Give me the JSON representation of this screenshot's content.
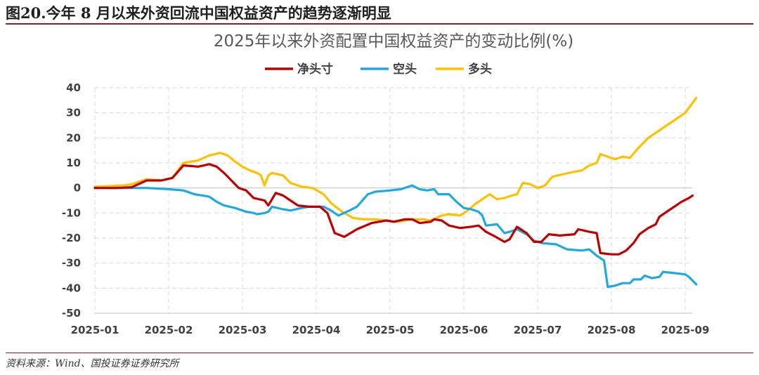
{
  "figure": {
    "title": "图20.今年 8 月以来外资回流中国权益资产的趋势逐渐明显",
    "source": "资料来源：Wind、国投证券证券研究所"
  },
  "chart_data": {
    "type": "line",
    "title": "2025年以来外资配置中国权益资产的变动比例(%)",
    "xlabel": "",
    "ylabel": "",
    "x_ticks": [
      "2025-01",
      "2025-02",
      "2025-03",
      "2025-04",
      "2025-05",
      "2025-06",
      "2025-07",
      "2025-08",
      "2025-09"
    ],
    "y_ticks": [
      40,
      30,
      20,
      10,
      0,
      -10,
      -20,
      -30,
      -40,
      -50
    ],
    "ylim": [
      -50,
      40
    ],
    "xlim_months": [
      0,
      8
    ],
    "grid": "dashed",
    "legend_position": "top",
    "colors": {
      "net": "#c00000",
      "short": "#1fa9e1",
      "long": "#ffc000",
      "grid": "#d9d9d9",
      "axis": "#bfbfbf"
    },
    "series": [
      {
        "name": "净头寸",
        "key": "net",
        "points": [
          [
            0,
            0
          ],
          [
            0.3,
            0
          ],
          [
            0.5,
            0.3
          ],
          [
            0.7,
            3
          ],
          [
            0.9,
            3
          ],
          [
            1.05,
            4
          ],
          [
            1.2,
            9
          ],
          [
            1.4,
            8.5
          ],
          [
            1.55,
            9.5
          ],
          [
            1.65,
            8.5
          ],
          [
            1.75,
            6
          ],
          [
            1.85,
            3
          ],
          [
            1.95,
            0
          ],
          [
            2.05,
            -1
          ],
          [
            2.15,
            -4
          ],
          [
            2.3,
            -5
          ],
          [
            2.35,
            -7
          ],
          [
            2.45,
            -2
          ],
          [
            2.55,
            -3
          ],
          [
            2.65,
            -5
          ],
          [
            2.75,
            -7
          ],
          [
            2.9,
            -7.5
          ],
          [
            3.05,
            -7.5
          ],
          [
            3.15,
            -10
          ],
          [
            3.25,
            -18
          ],
          [
            3.38,
            -19.5
          ],
          [
            3.55,
            -16.5
          ],
          [
            3.75,
            -14
          ],
          [
            3.95,
            -13
          ],
          [
            4.05,
            -13.5
          ],
          [
            4.2,
            -12.5
          ],
          [
            4.3,
            -12.5
          ],
          [
            4.4,
            -14
          ],
          [
            4.55,
            -13.5
          ],
          [
            4.6,
            -12.5
          ],
          [
            4.7,
            -13
          ],
          [
            4.8,
            -15
          ],
          [
            4.95,
            -16
          ],
          [
            5.1,
            -15.5
          ],
          [
            5.2,
            -15
          ],
          [
            5.3,
            -17.5
          ],
          [
            5.4,
            -19
          ],
          [
            5.55,
            -21.5
          ],
          [
            5.62,
            -20.5
          ],
          [
            5.72,
            -15.5
          ],
          [
            5.85,
            -18
          ],
          [
            5.95,
            -21.5
          ],
          [
            6.05,
            -21.5
          ],
          [
            6.15,
            -18.5
          ],
          [
            6.3,
            -19
          ],
          [
            6.5,
            -18.5
          ],
          [
            6.55,
            -16.5
          ],
          [
            6.7,
            -17.5
          ],
          [
            6.8,
            -18
          ],
          [
            6.85,
            -26
          ],
          [
            7.0,
            -26.5
          ],
          [
            7.1,
            -26.5
          ],
          [
            7.2,
            -25
          ],
          [
            7.3,
            -22
          ],
          [
            7.38,
            -18.5
          ],
          [
            7.5,
            -16
          ],
          [
            7.6,
            -14.5
          ],
          [
            7.65,
            -11.5
          ],
          [
            7.75,
            -9.5
          ],
          [
            7.85,
            -7.5
          ],
          [
            7.95,
            -5.5
          ],
          [
            8.05,
            -4
          ],
          [
            8.1,
            -3
          ]
        ]
      },
      {
        "name": "空头",
        "key": "short",
        "points": [
          [
            0,
            0
          ],
          [
            0.4,
            0
          ],
          [
            0.7,
            0
          ],
          [
            1.0,
            -0.5
          ],
          [
            1.2,
            -1
          ],
          [
            1.35,
            -2.5
          ],
          [
            1.55,
            -3.5
          ],
          [
            1.65,
            -5.5
          ],
          [
            1.75,
            -7
          ],
          [
            1.9,
            -8
          ],
          [
            2.05,
            -9.5
          ],
          [
            2.15,
            -10
          ],
          [
            2.2,
            -10.5
          ],
          [
            2.3,
            -10
          ],
          [
            2.35,
            -9.5
          ],
          [
            2.4,
            -7.5
          ],
          [
            2.55,
            -8.5
          ],
          [
            2.65,
            -9
          ],
          [
            2.8,
            -8
          ],
          [
            2.9,
            -7.5
          ],
          [
            3.1,
            -7.5
          ],
          [
            3.2,
            -9
          ],
          [
            3.3,
            -11
          ],
          [
            3.45,
            -9
          ],
          [
            3.55,
            -7.5
          ],
          [
            3.7,
            -2.5
          ],
          [
            3.8,
            -1.5
          ],
          [
            4.0,
            -1
          ],
          [
            4.15,
            -0.5
          ],
          [
            4.3,
            1
          ],
          [
            4.4,
            -0.5
          ],
          [
            4.5,
            -1
          ],
          [
            4.6,
            -0.5
          ],
          [
            4.65,
            -2.5
          ],
          [
            4.8,
            -2.5
          ],
          [
            4.9,
            -5.5
          ],
          [
            5.0,
            -8
          ],
          [
            5.1,
            -8.5
          ],
          [
            5.2,
            -9.5
          ],
          [
            5.25,
            -11
          ],
          [
            5.3,
            -15
          ],
          [
            5.45,
            -14.5
          ],
          [
            5.55,
            -18
          ],
          [
            5.62,
            -17.5
          ],
          [
            5.72,
            -16.5
          ],
          [
            5.85,
            -18.5
          ],
          [
            5.95,
            -21
          ],
          [
            6.05,
            -22
          ],
          [
            6.25,
            -22.5
          ],
          [
            6.4,
            -24.5
          ],
          [
            6.6,
            -25
          ],
          [
            6.7,
            -24.5
          ],
          [
            6.8,
            -27
          ],
          [
            6.9,
            -29
          ],
          [
            6.95,
            -39.5
          ],
          [
            7.05,
            -39
          ],
          [
            7.15,
            -38
          ],
          [
            7.25,
            -38
          ],
          [
            7.3,
            -36.5
          ],
          [
            7.4,
            -36.5
          ],
          [
            7.45,
            -35
          ],
          [
            7.5,
            -35.5
          ],
          [
            7.55,
            -36
          ],
          [
            7.65,
            -35.5
          ],
          [
            7.7,
            -33.5
          ],
          [
            7.85,
            -34
          ],
          [
            8.0,
            -34.5
          ],
          [
            8.05,
            -35.5
          ],
          [
            8.1,
            -37
          ],
          [
            8.15,
            -38.5
          ]
        ]
      },
      {
        "name": "多头",
        "key": "long",
        "points": [
          [
            0,
            0.5
          ],
          [
            0.4,
            1
          ],
          [
            0.5,
            1.5
          ],
          [
            0.7,
            3.5
          ],
          [
            0.9,
            3
          ],
          [
            1.05,
            4
          ],
          [
            1.2,
            10
          ],
          [
            1.4,
            11
          ],
          [
            1.55,
            13
          ],
          [
            1.7,
            14
          ],
          [
            1.8,
            13
          ],
          [
            1.9,
            10.5
          ],
          [
            2.0,
            8.5
          ],
          [
            2.1,
            7
          ],
          [
            2.2,
            6
          ],
          [
            2.25,
            5
          ],
          [
            2.3,
            1
          ],
          [
            2.35,
            5
          ],
          [
            2.4,
            6
          ],
          [
            2.55,
            5
          ],
          [
            2.65,
            2
          ],
          [
            2.8,
            0.5
          ],
          [
            2.95,
            0
          ],
          [
            3.1,
            -2.5
          ],
          [
            3.2,
            -6
          ],
          [
            3.35,
            -9.5
          ],
          [
            3.5,
            -12
          ],
          [
            3.65,
            -12.5
          ],
          [
            3.8,
            -12.5
          ],
          [
            3.95,
            -13
          ],
          [
            4.1,
            -13.5
          ],
          [
            4.3,
            -12.5
          ],
          [
            4.45,
            -12.5
          ],
          [
            4.55,
            -13
          ],
          [
            4.7,
            -11
          ],
          [
            4.8,
            -10.5
          ],
          [
            4.95,
            -11
          ],
          [
            5.05,
            -9
          ],
          [
            5.15,
            -6.5
          ],
          [
            5.25,
            -4.5
          ],
          [
            5.35,
            -2.5
          ],
          [
            5.45,
            -4.5
          ],
          [
            5.55,
            -4
          ],
          [
            5.65,
            -3
          ],
          [
            5.72,
            -2.5
          ],
          [
            5.8,
            2
          ],
          [
            5.9,
            1.5
          ],
          [
            6.0,
            0
          ],
          [
            6.1,
            1
          ],
          [
            6.2,
            4.5
          ],
          [
            6.35,
            5.5
          ],
          [
            6.5,
            6.5
          ],
          [
            6.6,
            7
          ],
          [
            6.7,
            9
          ],
          [
            6.8,
            10
          ],
          [
            6.85,
            13.5
          ],
          [
            6.95,
            12.5
          ],
          [
            7.05,
            11.5
          ],
          [
            7.15,
            12.5
          ],
          [
            7.25,
            12
          ],
          [
            7.35,
            15.5
          ],
          [
            7.5,
            20
          ],
          [
            7.6,
            22
          ],
          [
            7.75,
            25
          ],
          [
            7.9,
            28
          ],
          [
            8.0,
            30
          ],
          [
            8.1,
            34
          ],
          [
            8.15,
            36
          ]
        ]
      }
    ]
  }
}
